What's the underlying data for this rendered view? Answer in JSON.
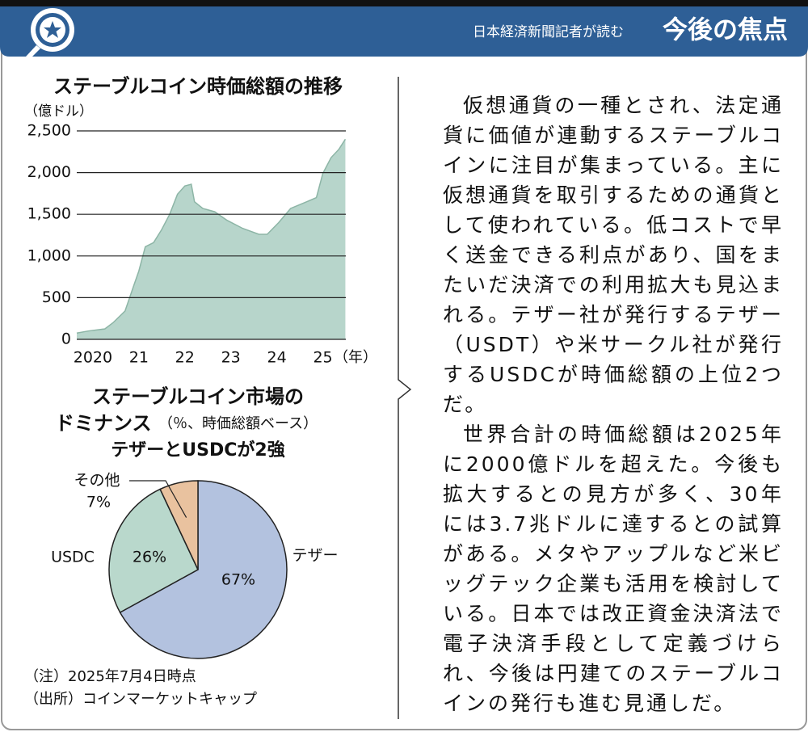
{
  "header": {
    "kicker": "日本経済新聞記者が読む",
    "title": "今後の焦点"
  },
  "chart_data": [
    {
      "type": "area",
      "title": "ステーブルコイン時価総額の推移",
      "y_label": "（億ドル）",
      "x_label": "（年）",
      "x": [
        2019.65,
        2019.9,
        2020.26,
        2020.44,
        2020.7,
        2020.88,
        2021.0,
        2021.14,
        2021.32,
        2021.49,
        2021.67,
        2021.84,
        2022.0,
        2022.14,
        2022.21,
        2022.39,
        2022.65,
        2022.91,
        2023.26,
        2023.61,
        2023.79,
        2024.04,
        2024.3,
        2024.65,
        2024.86,
        2025.0,
        2025.18,
        2025.35,
        2025.49
      ],
      "values": [
        75,
        100,
        125,
        200,
        340,
        630,
        820,
        1110,
        1160,
        1310,
        1500,
        1740,
        1840,
        1860,
        1650,
        1570,
        1530,
        1430,
        1330,
        1260,
        1260,
        1400,
        1570,
        1650,
        1700,
        1990,
        2180,
        2280,
        2400
      ],
      "color": "#b7d5cb",
      "line_color": "#8db5a6",
      "xlim": [
        2019.65,
        2025.5
      ],
      "xticks": [
        {
          "value": 2020,
          "label": "2020"
        },
        {
          "value": 2021,
          "label": "21"
        },
        {
          "value": 2022,
          "label": "22"
        },
        {
          "value": 2023,
          "label": "23"
        },
        {
          "value": 2024,
          "label": "24"
        },
        {
          "value": 2025,
          "label": "25"
        }
      ],
      "ylim": [
        0,
        2500
      ],
      "yticks": [
        0,
        500,
        {
          "value": 1000,
          "label": "1,000"
        },
        {
          "value": 1500,
          "label": "1,500"
        },
        {
          "value": 2000,
          "label": "2,000"
        },
        {
          "value": 2500,
          "label": "2,500"
        }
      ],
      "grid": true
    },
    {
      "type": "pie",
      "title": [
        "ステーブルコイン市場の",
        "ドミナンス"
      ],
      "subtitle": "（％、時価総額ベース）",
      "annotation": "テザーとUSDCが2強",
      "categories": [
        "テザー",
        "USDC",
        "その他"
      ],
      "values": [
        67,
        26,
        7
      ],
      "value_labels": [
        "67%",
        "26%",
        "7%"
      ],
      "colors": [
        "#b3c2df",
        "#b9d8cc",
        "#e9c29f"
      ]
    }
  ],
  "notes": [
    "（注）2025年7月4日時点",
    "（出所）コインマーケットキャップ"
  ],
  "article": {
    "paragraphs": [
      "仮想通貨の一種とされ、法定通貨に価値が連動するステーブルコインに注目が集まっている。主に仮想通貨を取引するための通貨として使われている。低コストで早く送金できる利点があり、国をまたいだ決済での利用拡大も見込まれる。テザー社が発行するテザー（USDT）や米サークル社が発行するUSDCが時価総額の上位2つだ。",
      "世界合計の時価総額は2025年に2000億ドルを超えた。今後も拡大するとの見方が多く、30年には3.7兆ドルに達するとの試算がある。メタやアップルなど米ビッグテック企業も活用を検討している。日本では改正資金決済法で電子決済手段として定義づけられ、今後は円建てのステーブルコインの発行も進む見通しだ。"
    ]
  }
}
